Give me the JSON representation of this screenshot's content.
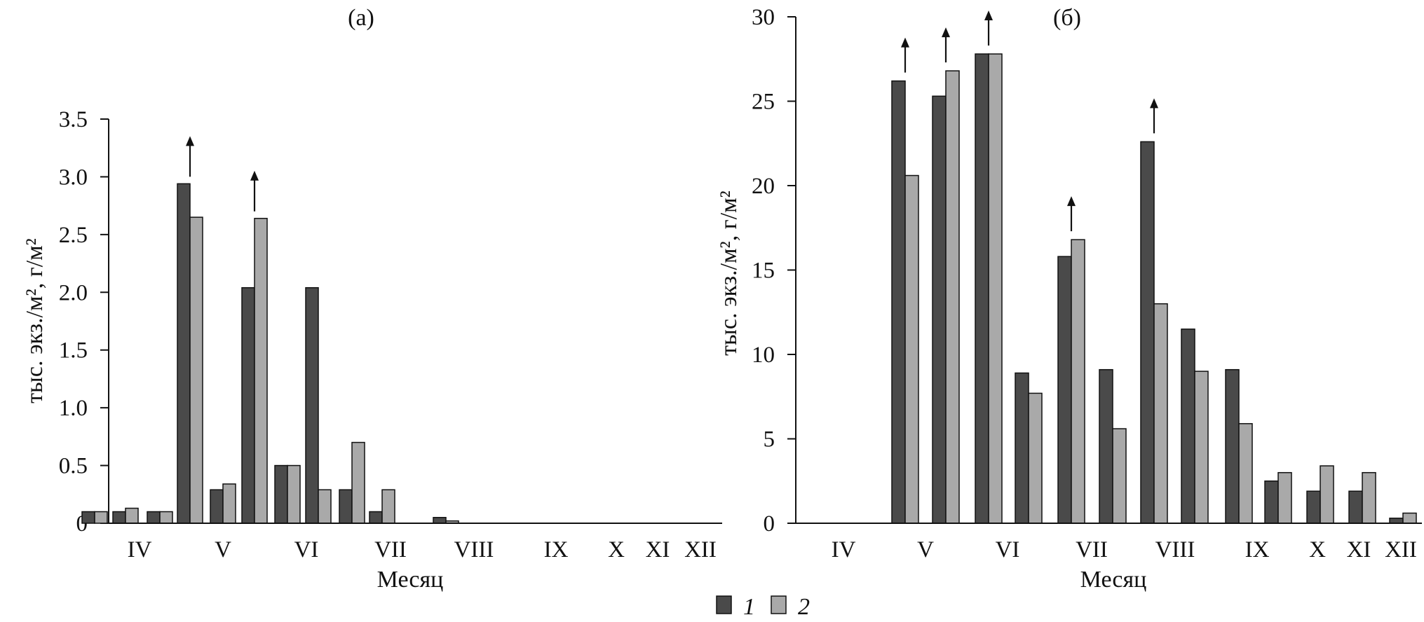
{
  "colors": {
    "series_1": "#4a4a4a",
    "series_2": "#a9a9a9",
    "axis": "#111111"
  },
  "legend": {
    "items": [
      "1",
      "2"
    ],
    "placement": "bottom-center"
  },
  "chart_data": [
    {
      "type": "bar",
      "title": "(а)",
      "xlabel": "Месяц",
      "ylabel": "тыс. экз./м², г/м²",
      "ylim": [
        0,
        3.5
      ],
      "yticks": [
        "0",
        "0.5",
        "1.0",
        "1.5",
        "2.0",
        "2.5",
        "3.0",
        "3.5"
      ],
      "month_labels": [
        "IV",
        "V",
        "VI",
        "VII",
        "VIII",
        "IX",
        "X",
        "XI",
        "XII"
      ],
      "groups": [
        {
          "month": "IV",
          "values": [
            0.1,
            0.1
          ]
        },
        {
          "month": "IV",
          "values": [
            0.1,
            0.13
          ]
        },
        {
          "month": "V",
          "values": [
            0.1,
            0.1
          ]
        },
        {
          "month": "V",
          "values": [
            2.94,
            2.65
          ],
          "arrow": true
        },
        {
          "month": "VI",
          "values": [
            0.29,
            0.34
          ]
        },
        {
          "month": "VI",
          "values": [
            2.04,
            2.64
          ],
          "arrow": true
        },
        {
          "month": "VII",
          "values": [
            0.5,
            0.5
          ]
        },
        {
          "month": "VII",
          "values": [
            2.04,
            0.29
          ]
        },
        {
          "month": "VIII",
          "values": [
            0.29,
            0.7
          ]
        },
        {
          "month": "VIII",
          "values": [
            0.1,
            0.29
          ]
        },
        {
          "month": "IX",
          "values": [
            0.0,
            0.0
          ]
        },
        {
          "month": "IX",
          "values": [
            0.05,
            0.02
          ]
        },
        {
          "month": "X",
          "values": [
            0.0,
            0.0
          ]
        },
        {
          "month": "XI",
          "values": [
            0.0,
            0.0
          ]
        },
        {
          "month": "XII",
          "values": [
            0.0,
            0.0
          ]
        }
      ],
      "series": [
        {
          "name": "1"
        },
        {
          "name": "2"
        }
      ]
    },
    {
      "type": "bar",
      "title": "(б)",
      "xlabel": "Месяц",
      "ylabel": "тыс. экз./м², г/м²",
      "ylim": [
        0,
        30
      ],
      "yticks": [
        "0",
        "5",
        "10",
        "15",
        "20",
        "25",
        "30"
      ],
      "month_labels": [
        "IV",
        "V",
        "VI",
        "VII",
        "VIII",
        "IX",
        "X",
        "XI",
        "XII"
      ],
      "groups": [
        {
          "month": "IV",
          "values": [
            0,
            0
          ]
        },
        {
          "month": "IV",
          "values": [
            0,
            0
          ]
        },
        {
          "month": "V",
          "values": [
            26.2,
            20.6
          ],
          "arrow": true
        },
        {
          "month": "V",
          "values": [
            25.3,
            26.8
          ],
          "arrow": true
        },
        {
          "month": "VI",
          "values": [
            27.8,
            27.8
          ],
          "arrow": true
        },
        {
          "month": "VI",
          "values": [
            8.9,
            7.7
          ]
        },
        {
          "month": "VII",
          "values": [
            15.8,
            16.8
          ],
          "arrow": true
        },
        {
          "month": "VII",
          "values": [
            9.1,
            5.6
          ]
        },
        {
          "month": "VIII",
          "values": [
            22.6,
            13.0
          ],
          "arrow": true
        },
        {
          "month": "VIII",
          "values": [
            11.5,
            9.0
          ]
        },
        {
          "month": "IX",
          "values": [
            9.1,
            5.9
          ]
        },
        {
          "month": "IX",
          "values": [
            2.5,
            3.0
          ]
        },
        {
          "month": "X",
          "values": [
            1.9,
            3.4
          ]
        },
        {
          "month": "XI",
          "values": [
            1.9,
            3.0
          ]
        },
        {
          "month": "XII",
          "values": [
            0.3,
            0.6
          ]
        }
      ],
      "series": [
        {
          "name": "1"
        },
        {
          "name": "2"
        }
      ]
    }
  ]
}
